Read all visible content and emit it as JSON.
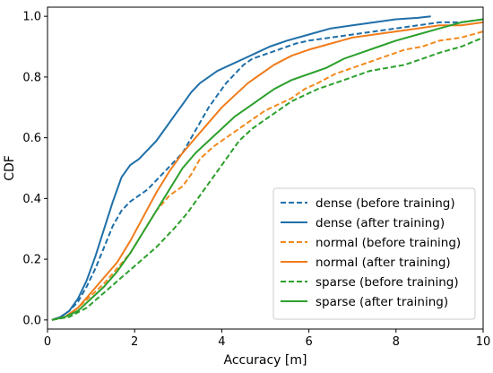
{
  "chart_data": {
    "type": "line",
    "xlabel": "Accuracy [m]",
    "ylabel": "CDF",
    "xlim": [
      0,
      10
    ],
    "ylim": [
      -0.03,
      1.03
    ],
    "x_ticks": [
      0,
      2,
      4,
      6,
      8,
      10
    ],
    "y_ticks": [
      0.0,
      0.2,
      0.4,
      0.6,
      0.8,
      1.0
    ],
    "x_tick_labels": [
      "0",
      "2",
      "4",
      "6",
      "8",
      "10"
    ],
    "y_tick_labels": [
      "0.0",
      "0.2",
      "0.4",
      "0.6",
      "0.8",
      "1.0"
    ],
    "grid": false,
    "legend_position": "lower-right",
    "series": [
      {
        "name": "dense (before training)",
        "color": "#1f6fa8",
        "style": "dashed",
        "x": [
          0.1,
          0.3,
          0.5,
          0.7,
          0.9,
          1.1,
          1.3,
          1.5,
          1.7,
          1.9,
          2.1,
          2.3,
          2.5,
          2.7,
          2.9,
          3.1,
          3.3,
          3.5,
          3.7,
          3.9,
          4.1,
          4.3,
          4.5,
          4.7,
          4.9,
          5.1,
          5.3,
          5.5,
          5.7,
          6.0,
          6.5,
          7.0,
          7.5,
          8.0,
          8.5,
          9.0,
          9.5,
          10.0
        ],
        "y": [
          0.0,
          0.01,
          0.03,
          0.06,
          0.11,
          0.17,
          0.24,
          0.31,
          0.36,
          0.39,
          0.41,
          0.43,
          0.46,
          0.49,
          0.52,
          0.55,
          0.6,
          0.65,
          0.7,
          0.74,
          0.78,
          0.81,
          0.84,
          0.86,
          0.87,
          0.88,
          0.89,
          0.9,
          0.91,
          0.92,
          0.93,
          0.94,
          0.95,
          0.96,
          0.97,
          0.98,
          0.98,
          0.99
        ]
      },
      {
        "name": "dense (after training)",
        "color": "#1f6fa8",
        "style": "solid",
        "x": [
          0.1,
          0.3,
          0.5,
          0.7,
          0.9,
          1.1,
          1.3,
          1.5,
          1.7,
          1.9,
          2.1,
          2.3,
          2.5,
          2.7,
          2.9,
          3.1,
          3.3,
          3.5,
          3.7,
          3.9,
          4.2,
          4.5,
          4.8,
          5.1,
          5.5,
          6.0,
          6.5,
          7.0,
          7.5,
          8.0,
          8.5,
          8.8
        ],
        "y": [
          0.0,
          0.01,
          0.03,
          0.07,
          0.13,
          0.21,
          0.3,
          0.39,
          0.47,
          0.51,
          0.53,
          0.56,
          0.59,
          0.63,
          0.67,
          0.71,
          0.75,
          0.78,
          0.8,
          0.82,
          0.84,
          0.86,
          0.88,
          0.9,
          0.92,
          0.94,
          0.96,
          0.97,
          0.98,
          0.99,
          0.995,
          1.0
        ]
      },
      {
        "name": "normal (before training)",
        "color": "#f28a1e",
        "style": "dashed",
        "x": [
          0.1,
          0.4,
          0.7,
          1.0,
          1.3,
          1.6,
          1.9,
          2.2,
          2.5,
          2.8,
          3.1,
          3.3,
          3.5,
          3.8,
          4.1,
          4.4,
          4.7,
          5.0,
          5.3,
          5.6,
          5.9,
          6.2,
          6.6,
          7.0,
          7.4,
          7.8,
          8.2,
          8.6,
          9.0,
          9.5,
          10.0
        ],
        "y": [
          0.0,
          0.01,
          0.04,
          0.08,
          0.12,
          0.17,
          0.22,
          0.29,
          0.36,
          0.41,
          0.44,
          0.48,
          0.53,
          0.57,
          0.6,
          0.63,
          0.66,
          0.69,
          0.71,
          0.73,
          0.76,
          0.78,
          0.81,
          0.83,
          0.85,
          0.87,
          0.89,
          0.9,
          0.92,
          0.93,
          0.95
        ]
      },
      {
        "name": "normal (after training)",
        "color": "#f07c1c",
        "style": "solid",
        "x": [
          0.1,
          0.4,
          0.7,
          1.0,
          1.3,
          1.6,
          1.9,
          2.2,
          2.5,
          2.8,
          3.1,
          3.4,
          3.7,
          4.0,
          4.3,
          4.6,
          4.9,
          5.2,
          5.6,
          6.0,
          6.5,
          7.0,
          7.5,
          8.0,
          8.5,
          9.0,
          9.5,
          10.0
        ],
        "y": [
          0.0,
          0.01,
          0.04,
          0.09,
          0.14,
          0.19,
          0.26,
          0.34,
          0.42,
          0.49,
          0.55,
          0.6,
          0.65,
          0.7,
          0.74,
          0.78,
          0.81,
          0.84,
          0.87,
          0.89,
          0.91,
          0.93,
          0.94,
          0.95,
          0.96,
          0.97,
          0.97,
          0.98
        ]
      },
      {
        "name": "sparse (before training)",
        "color": "#2ca02c",
        "style": "dashed",
        "x": [
          0.1,
          0.5,
          0.9,
          1.3,
          1.7,
          2.1,
          2.5,
          2.9,
          3.2,
          3.5,
          3.8,
          4.1,
          4.4,
          4.7,
          5.0,
          5.3,
          5.6,
          5.9,
          6.2,
          6.6,
          7.0,
          7.4,
          7.8,
          8.2,
          8.6,
          9.0,
          9.5,
          10.0
        ],
        "y": [
          0.0,
          0.01,
          0.04,
          0.09,
          0.14,
          0.19,
          0.24,
          0.3,
          0.35,
          0.41,
          0.47,
          0.53,
          0.59,
          0.63,
          0.66,
          0.69,
          0.72,
          0.74,
          0.76,
          0.78,
          0.8,
          0.82,
          0.83,
          0.84,
          0.86,
          0.88,
          0.9,
          0.93
        ]
      },
      {
        "name": "sparse (after training)",
        "color": "#2ca02c",
        "style": "solid",
        "x": [
          0.1,
          0.4,
          0.7,
          1.0,
          1.3,
          1.6,
          1.9,
          2.2,
          2.5,
          2.8,
          3.1,
          3.4,
          3.7,
          4.0,
          4.3,
          4.6,
          4.9,
          5.2,
          5.6,
          6.0,
          6.4,
          6.8,
          7.2,
          7.6,
          8.0,
          8.5,
          9.0,
          9.5,
          10.0
        ],
        "y": [
          0.0,
          0.01,
          0.03,
          0.07,
          0.11,
          0.16,
          0.22,
          0.29,
          0.36,
          0.43,
          0.5,
          0.55,
          0.59,
          0.63,
          0.67,
          0.7,
          0.73,
          0.76,
          0.79,
          0.81,
          0.83,
          0.86,
          0.88,
          0.9,
          0.92,
          0.94,
          0.96,
          0.98,
          0.99
        ]
      }
    ]
  }
}
